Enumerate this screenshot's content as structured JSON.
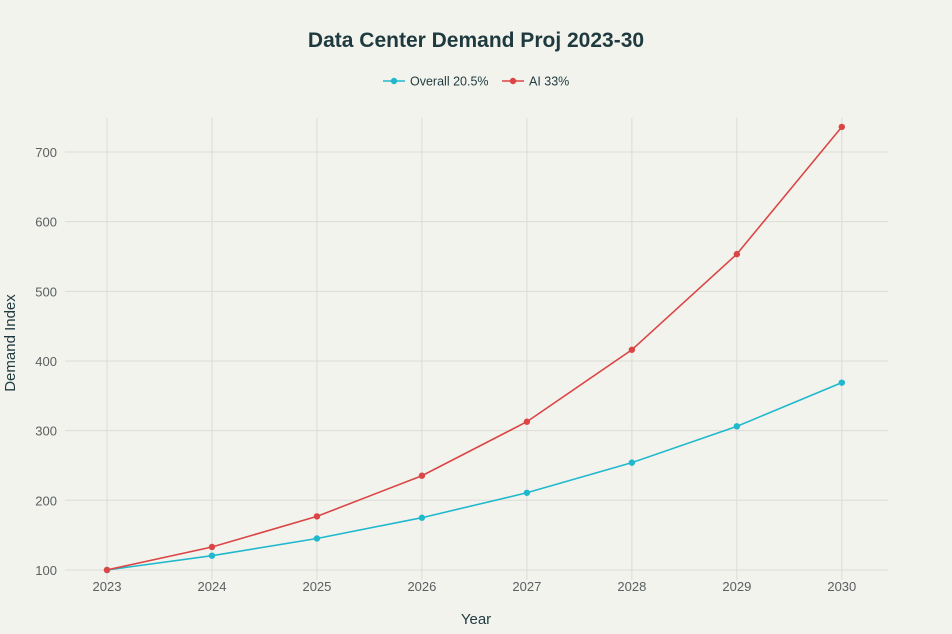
{
  "chart_data": {
    "type": "line",
    "title": "Data Center Demand Proj 2023-30",
    "xlabel": "Year",
    "ylabel": "Demand Index",
    "x": [
      2023,
      2024,
      2025,
      2026,
      2027,
      2028,
      2029,
      2030
    ],
    "x_tick_labels": [
      "2023",
      "2024",
      "2025",
      "2026",
      "2027",
      "2028",
      "2029",
      "2030"
    ],
    "y_ticks": [
      100,
      200,
      300,
      400,
      500,
      600,
      700
    ],
    "y_tick_labels": [
      "100",
      "200",
      "300",
      "400",
      "500",
      "600",
      "700"
    ],
    "ylim": [
      85.6,
      748.8
    ],
    "xlim": [
      2022.6,
      2030.44
    ],
    "grid": true,
    "legend_position": "top-center",
    "series": [
      {
        "name": "Overall 20.5%",
        "color": "#1fb8cd",
        "values": [
          100,
          120.5,
          145.2,
          175.0,
          210.8,
          254.1,
          306.2,
          368.9
        ]
      },
      {
        "name": "AI 33%",
        "color": "#db4545",
        "values": [
          100,
          133.0,
          176.9,
          235.3,
          312.8,
          416.1,
          553.4,
          736.0
        ]
      }
    ]
  }
}
